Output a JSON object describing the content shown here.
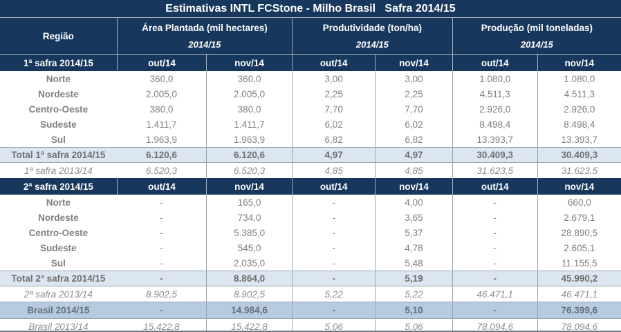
{
  "colors": {
    "header_navy": "#17375d",
    "total_row_bg": "#dce6f1",
    "brasil_row_bg": "#b7cbe0",
    "data_text_gray": "#808080",
    "label_text_gray": "#7f7f7f",
    "grid_line": "#9aa4ad",
    "row_separator": "#98a4b0"
  },
  "chart_data": {
    "type": "table",
    "title": "Estimativas INTL FCStone - Milho Brasil   Safra 2014/15",
    "header": {
      "region": "Região",
      "groups": [
        {
          "label": "Área Plantada (mil hectares)",
          "season": "2014/15"
        },
        {
          "label": "Produtividade (ton/ha)",
          "season": "2014/15"
        },
        {
          "label": "Produção (mil toneladas)",
          "season": "2014/15"
        }
      ],
      "month_columns": [
        "out/14",
        "nov/14"
      ]
    },
    "rows": [
      {
        "type": "subheader",
        "label": "1ª safra 2014/15",
        "cells": [
          "out/14",
          "nov/14",
          "out/14",
          "nov/14",
          "out/14",
          "nov/14"
        ]
      },
      {
        "type": "data",
        "label": "Norte",
        "cells": [
          "360,0",
          "360,0",
          "3,00",
          "3,00",
          "1.080,0",
          "1.080,0"
        ]
      },
      {
        "type": "data",
        "label": "Nordeste",
        "cells": [
          "2.005,0",
          "2.005,0",
          "2,25",
          "2,25",
          "4.511,3",
          "4.511,3"
        ]
      },
      {
        "type": "data",
        "label": "Centro-Oeste",
        "cells": [
          "380,0",
          "380,0",
          "7,70",
          "7,70",
          "2.926,0",
          "2.926,0"
        ]
      },
      {
        "type": "data",
        "label": "Sudeste",
        "cells": [
          "1.411,7",
          "1.411,7",
          "6,02",
          "6,02",
          "8.498,4",
          "8.498,4"
        ]
      },
      {
        "type": "data",
        "label": "Sul",
        "cells": [
          "1.963,9",
          "1.963,9",
          "6,82",
          "6,82",
          "13.393,7",
          "13.393,7"
        ]
      },
      {
        "type": "total",
        "label": "Total 1ª safra 2014/15",
        "cells": [
          "6.120,6",
          "6.120,6",
          "4,97",
          "4,97",
          "30.409,3",
          "30.409,3"
        ]
      },
      {
        "type": "italic",
        "label": "1ª safra 2013/14",
        "cells": [
          "6.520,3",
          "6.520,3",
          "4,85",
          "4,85",
          "31.623,5",
          "31.623,5"
        ]
      },
      {
        "type": "subheader",
        "label": "2ª safra 2014/15",
        "cells": [
          "out/14",
          "nov/14",
          "out/14",
          "nov/14",
          "out/14",
          "nov/14"
        ]
      },
      {
        "type": "data",
        "label": "Norte",
        "cells": [
          "-",
          "165,0",
          "-",
          "4,00",
          "-",
          "660,0"
        ]
      },
      {
        "type": "data",
        "label": "Nordeste",
        "cells": [
          "-",
          "734,0",
          "-",
          "3,65",
          "-",
          "2.679,1"
        ]
      },
      {
        "type": "data",
        "label": "Centro-Oeste",
        "cells": [
          "-",
          "5.385,0",
          "-",
          "5,37",
          "-",
          "28.890,5"
        ]
      },
      {
        "type": "data",
        "label": "Sudeste",
        "cells": [
          "-",
          "545,0",
          "-",
          "4,78",
          "-",
          "2.605,1"
        ]
      },
      {
        "type": "data",
        "label": "Sul",
        "cells": [
          "-",
          "2.035,0",
          "-",
          "5,48",
          "-",
          "11.155,5"
        ]
      },
      {
        "type": "total",
        "label": "Total 2ª safra 2014/15",
        "cells": [
          "-",
          "8.864,0",
          "-",
          "5,19",
          "-",
          "45.990,2"
        ]
      },
      {
        "type": "italic",
        "label": "2ª safra 2013/14",
        "cells": [
          "8.902,5",
          "8.902,5",
          "5,22",
          "5,22",
          "46.471,1",
          "46.471,1"
        ]
      },
      {
        "type": "brasil",
        "label": "Brasil 2014/15",
        "cells": [
          "-",
          "14.984,6",
          "-",
          "5,10",
          "-",
          "76.399,6"
        ]
      },
      {
        "type": "italic",
        "label": "Brasil 2013/14",
        "cells": [
          "15.422,8",
          "15.422,8",
          "5,06",
          "5,06",
          "78.094,6",
          "78.094,6"
        ]
      }
    ]
  }
}
